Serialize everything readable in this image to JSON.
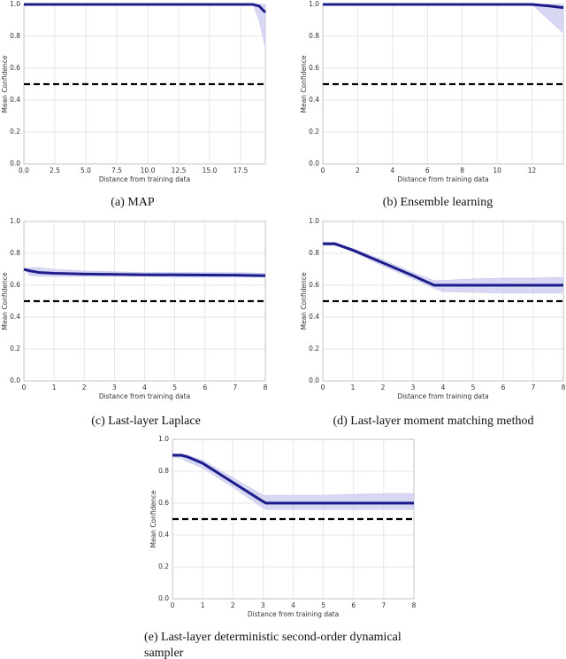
{
  "chart_data": [
    {
      "type": "line",
      "caption": "(a) MAP",
      "xlabel": "Distance from training data",
      "ylabel": "Mean Confidence",
      "x": [
        0,
        2,
        4,
        6,
        8,
        10,
        12,
        14,
        16,
        18,
        18.5,
        19,
        19.5
      ],
      "values": [
        1,
        1,
        1,
        1,
        1,
        1,
        1,
        1,
        1,
        1,
        1,
        0.99,
        0.95
      ],
      "upper": [
        1,
        1,
        1,
        1,
        1,
        1,
        1,
        1,
        1,
        1,
        1,
        1,
        1
      ],
      "lower": [
        1,
        1,
        1,
        1,
        1,
        1,
        1,
        1,
        1,
        1,
        1,
        0.9,
        0.73
      ],
      "ref_line": 0.5,
      "color": "#1c1c8a",
      "band_color": "#c9c9ef",
      "grid": true,
      "xlim": [
        0,
        19.5
      ],
      "ylim": [
        0,
        1
      ],
      "xticks": [
        {
          "value": 0,
          "label": "0.0"
        },
        2.5,
        {
          "value": 5,
          "label": "5.0"
        },
        7.5,
        {
          "value": 10,
          "label": "10.0"
        },
        12.5,
        {
          "value": 15,
          "label": "15.0"
        },
        17.5
      ],
      "yticks": [
        {
          "value": 0,
          "label": "0.0"
        },
        0.2,
        0.4,
        0.6,
        0.8,
        {
          "value": 1,
          "label": "1.0"
        }
      ]
    },
    {
      "type": "line",
      "caption": "(b) Ensemble learning",
      "xlabel": "Distance from training data",
      "ylabel": "Mean Confidence",
      "x": [
        0,
        2,
        4,
        6,
        8,
        10,
        12,
        12.5,
        13,
        13.4,
        13.8
      ],
      "values": [
        1,
        1,
        1,
        1,
        1,
        1,
        1,
        0.995,
        0.99,
        0.985,
        0.98
      ],
      "upper": [
        1,
        1,
        1,
        1,
        1,
        1,
        1,
        1,
        1,
        1,
        1
      ],
      "lower": [
        1,
        1,
        1,
        1,
        1,
        1,
        1,
        0.95,
        0.9,
        0.86,
        0.82
      ],
      "ref_line": 0.5,
      "color": "#1c1c8a",
      "band_color": "#c9c9ef",
      "grid": true,
      "xlim": [
        0,
        13.8
      ],
      "ylim": [
        0,
        1
      ],
      "xticks": [
        0,
        2,
        4,
        6,
        8,
        10,
        12
      ],
      "yticks": [
        {
          "value": 0,
          "label": "0.0"
        },
        0.2,
        0.4,
        0.6,
        0.8,
        {
          "value": 1,
          "label": "1.0"
        }
      ]
    },
    {
      "type": "line",
      "caption": "(c) Last-layer Laplace",
      "xlabel": "Distance from training data",
      "ylabel": "Mean Confidence",
      "x": [
        0,
        0.2,
        0.5,
        1,
        2,
        3,
        4,
        5,
        6,
        7,
        8
      ],
      "values": [
        0.7,
        0.69,
        0.68,
        0.675,
        0.67,
        0.668,
        0.665,
        0.665,
        0.664,
        0.663,
        0.66
      ],
      "upper": [
        0.7,
        0.71,
        0.71,
        0.7,
        0.69,
        0.685,
        0.68,
        0.68,
        0.68,
        0.68,
        0.675
      ],
      "lower": [
        0.7,
        0.66,
        0.655,
        0.655,
        0.655,
        0.655,
        0.655,
        0.65,
        0.65,
        0.65,
        0.65
      ],
      "ref_line": 0.5,
      "color": "#1c1c8a",
      "band_color": "#c9c9ef",
      "grid": true,
      "xlim": [
        0,
        8
      ],
      "ylim": [
        0,
        1
      ],
      "xticks": [
        0,
        1,
        2,
        3,
        4,
        5,
        6,
        7,
        8
      ],
      "yticks": [
        {
          "value": 0,
          "label": "0.0"
        },
        0.2,
        0.4,
        0.6,
        0.8,
        {
          "value": 1,
          "label": "1.0"
        }
      ]
    },
    {
      "type": "line",
      "caption": "(d) Last-layer moment matching method",
      "xlabel": "Distance from training data",
      "ylabel": "Mean Confidence",
      "x": [
        0,
        0.4,
        1,
        2,
        3,
        3.7,
        4,
        5,
        6,
        7,
        8
      ],
      "values": [
        0.86,
        0.86,
        0.82,
        0.74,
        0.66,
        0.6,
        0.6,
        0.6,
        0.6,
        0.6,
        0.6
      ],
      "upper": [
        0.87,
        0.87,
        0.83,
        0.76,
        0.68,
        0.63,
        0.63,
        0.64,
        0.645,
        0.645,
        0.65
      ],
      "lower": [
        0.85,
        0.85,
        0.81,
        0.72,
        0.64,
        0.58,
        0.56,
        0.555,
        0.55,
        0.55,
        0.55
      ],
      "ref_line": 0.5,
      "color": "#1c1c8a",
      "band_color": "#c9c9ef",
      "grid": true,
      "xlim": [
        0,
        8
      ],
      "ylim": [
        0,
        1
      ],
      "xticks": [
        0,
        1,
        2,
        3,
        4,
        5,
        6,
        7,
        8
      ],
      "yticks": [
        {
          "value": 0,
          "label": "0.0"
        },
        0.2,
        0.4,
        0.6,
        0.8,
        {
          "value": 1,
          "label": "1.0"
        }
      ]
    },
    {
      "type": "line",
      "caption": "(e) Last-layer deterministic second-order dynamical sampler",
      "xlabel": "Distance from training data",
      "ylabel": "Mean Confidence",
      "x": [
        0,
        0.3,
        0.5,
        1,
        2,
        3,
        3.1,
        4,
        5,
        6,
        7,
        8
      ],
      "values": [
        0.9,
        0.9,
        0.89,
        0.85,
        0.73,
        0.61,
        0.6,
        0.6,
        0.6,
        0.6,
        0.6,
        0.6
      ],
      "upper": [
        0.91,
        0.91,
        0.9,
        0.87,
        0.76,
        0.65,
        0.65,
        0.65,
        0.65,
        0.655,
        0.66,
        0.66
      ],
      "lower": [
        0.89,
        0.88,
        0.86,
        0.82,
        0.7,
        0.57,
        0.56,
        0.56,
        0.56,
        0.56,
        0.56,
        0.56
      ],
      "ref_line": 0.5,
      "color": "#1c1c8a",
      "band_color": "#c9c9ef",
      "grid": true,
      "xlim": [
        0,
        8
      ],
      "ylim": [
        0,
        1
      ],
      "xticks": [
        0,
        1,
        2,
        3,
        4,
        5,
        6,
        7,
        8
      ],
      "yticks": [
        {
          "value": 0,
          "label": "0.0"
        },
        0.2,
        0.4,
        0.6,
        0.8,
        {
          "value": 1,
          "label": "1.0"
        }
      ]
    }
  ]
}
